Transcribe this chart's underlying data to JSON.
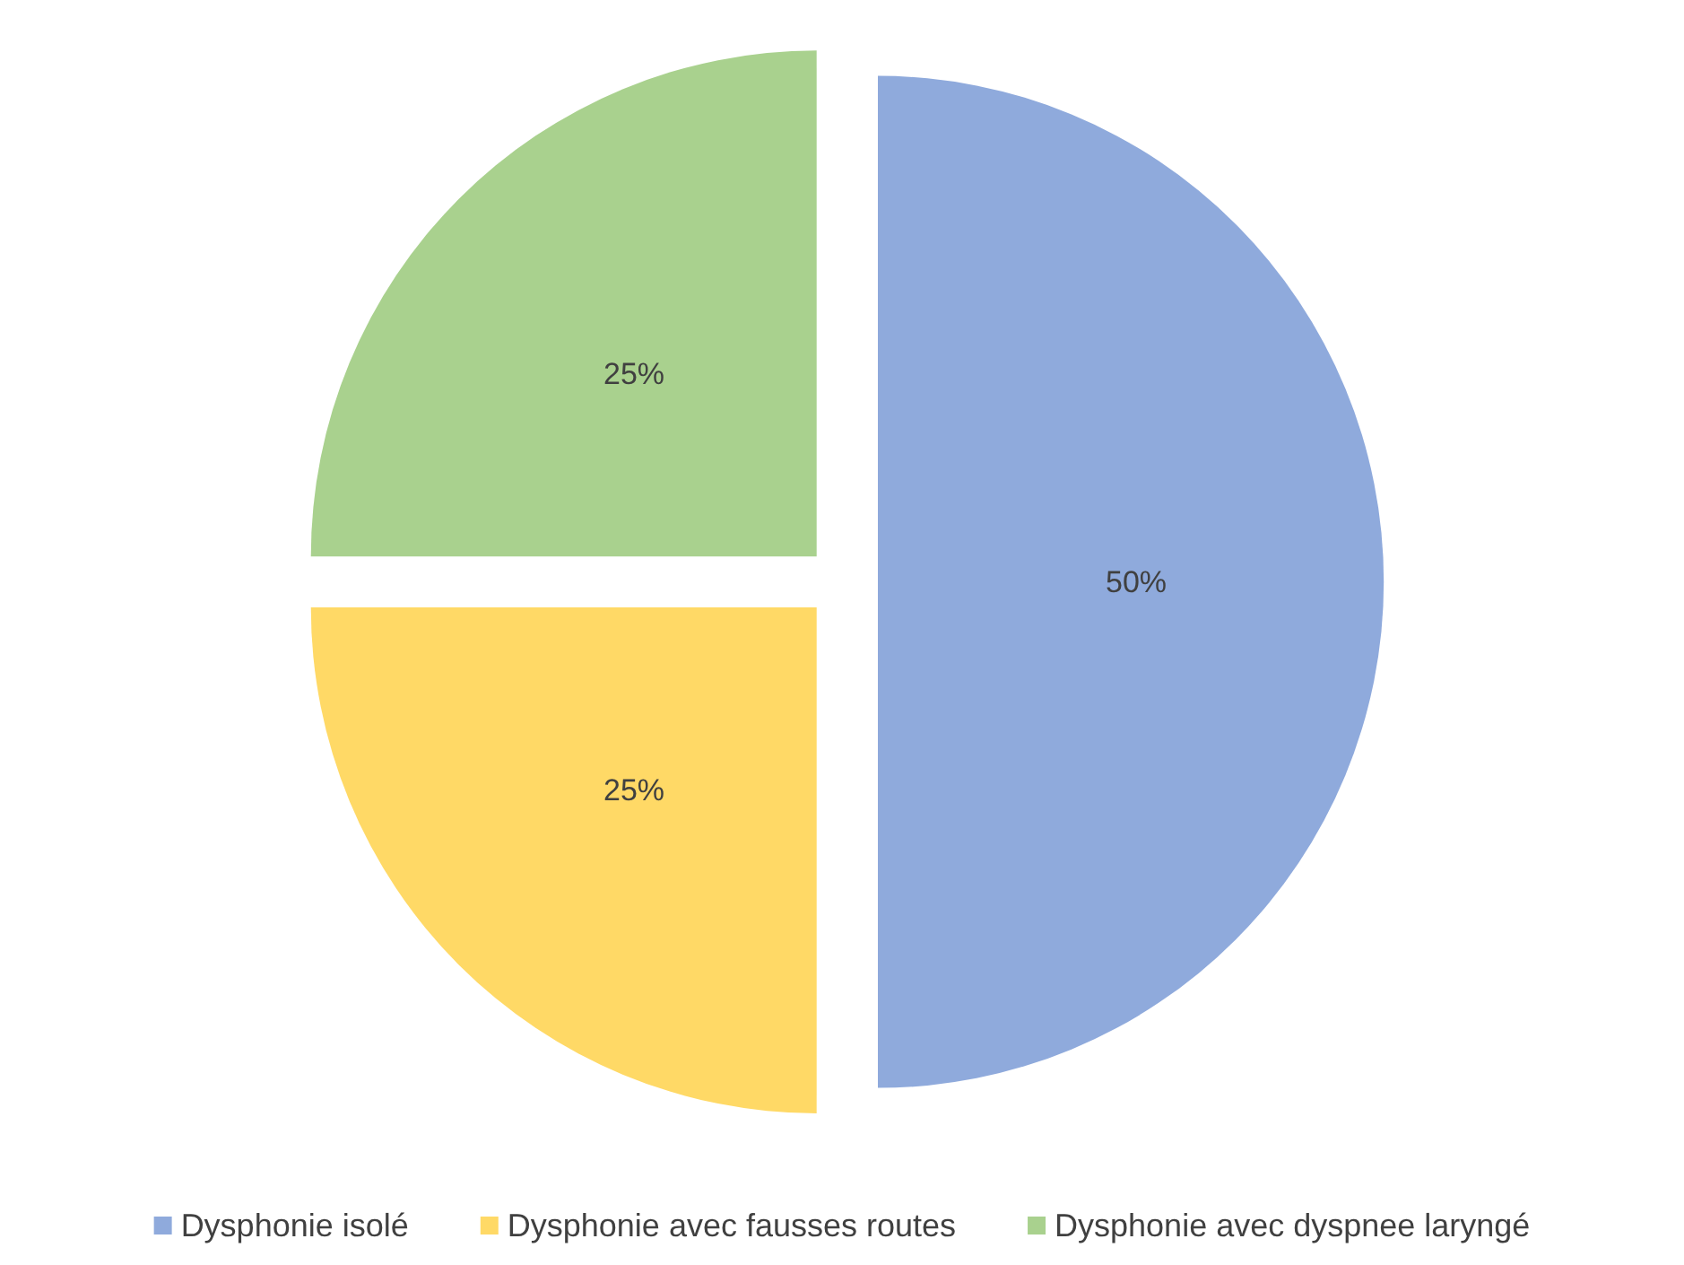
{
  "chart_data": {
    "type": "pie",
    "categories": [
      "Dysphonie isolé",
      "Dysphonie avec fausses routes",
      "Dysphonie avec dyspnee laryngé"
    ],
    "values": [
      50,
      25,
      25
    ],
    "colors": [
      "#8faadc",
      "#ffd966",
      "#a9d18e"
    ],
    "value_labels": [
      "50%",
      "25%",
      "25%"
    ],
    "legend": "bottom"
  }
}
